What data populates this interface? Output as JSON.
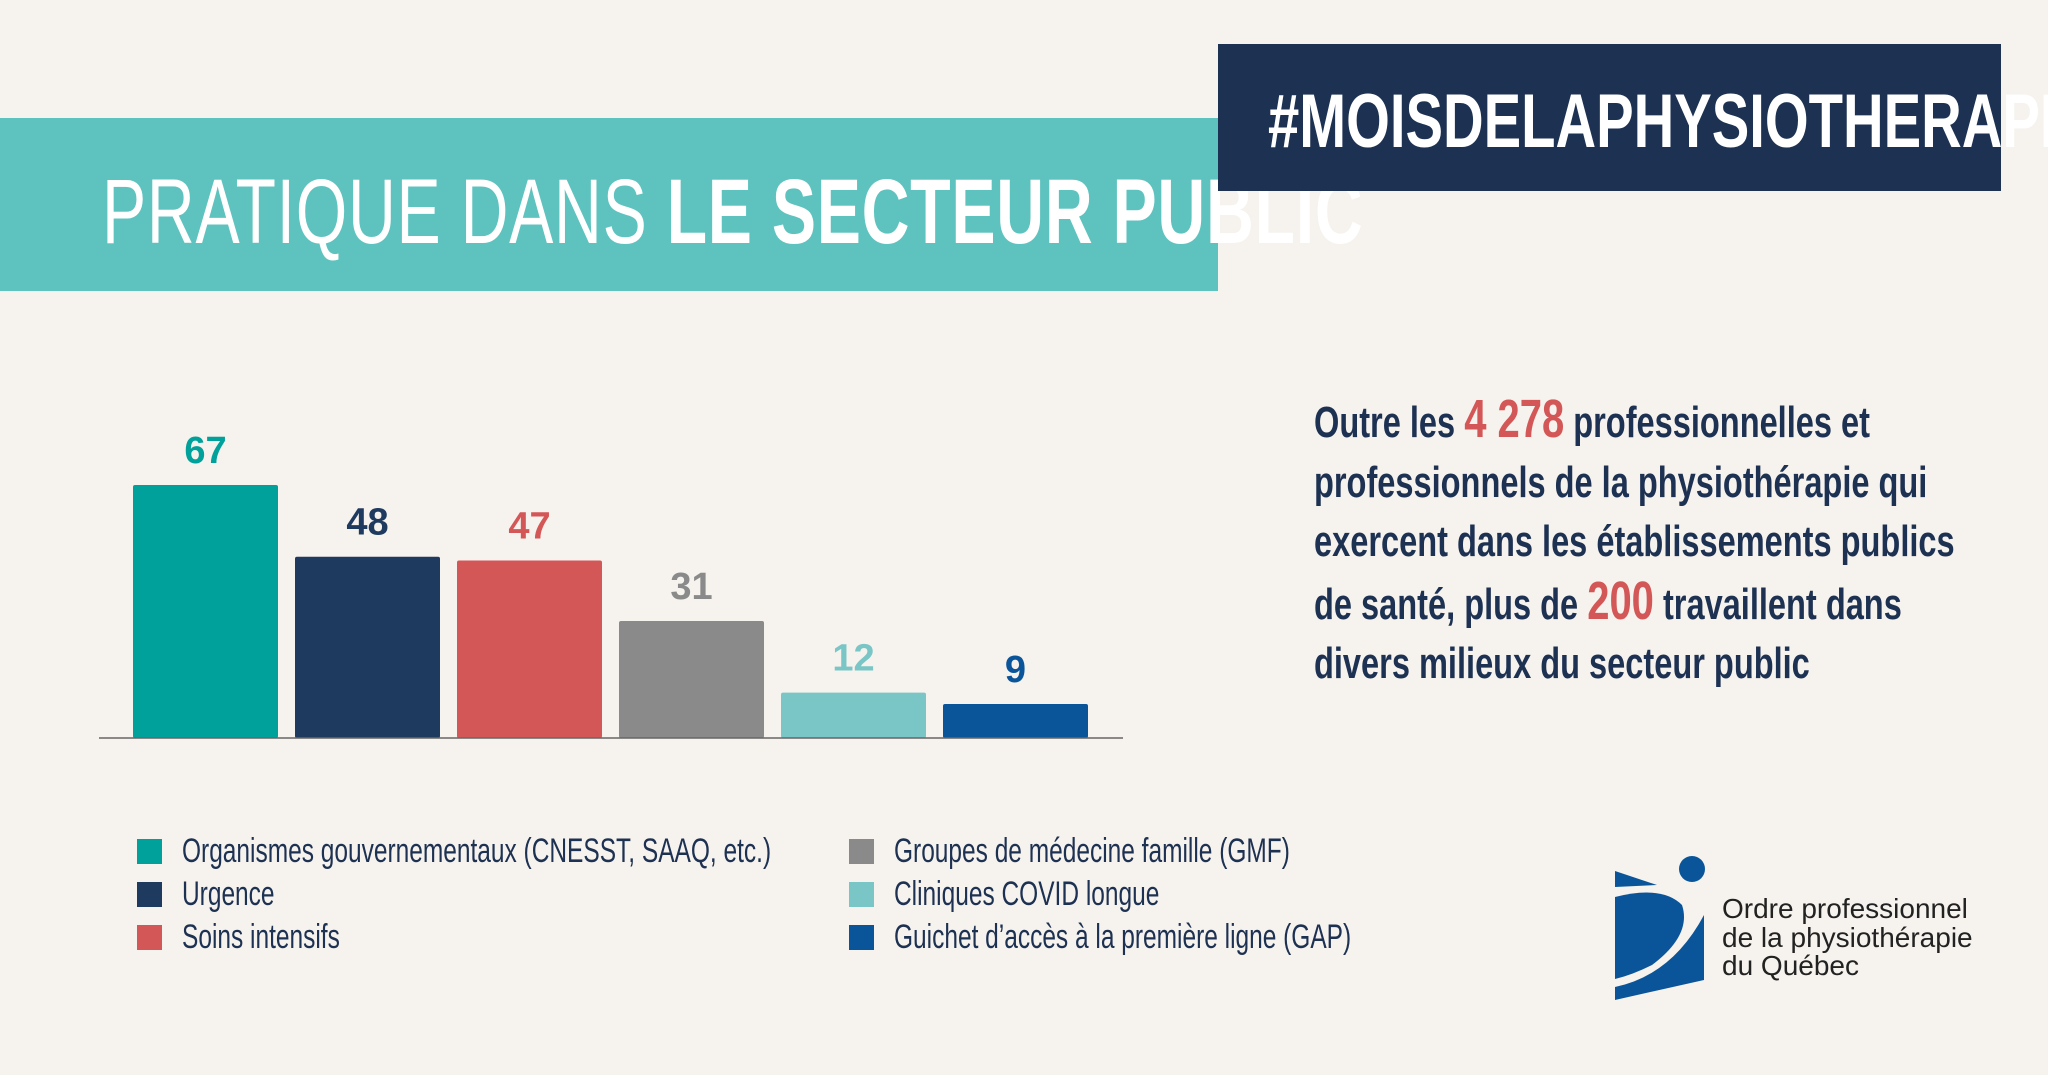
{
  "header": {
    "title_light": "PRATIQUE DANS",
    "title_bold": "LE SECTEUR PUBLIC",
    "hashtag": "#MOISDELAPHYSIOTHERAPIE"
  },
  "paragraph": {
    "part1": "Outre les ",
    "number1": "4 278",
    "part2": " professionnelles et professionnels de la physiothérapie qui exercent dans les établissements publics de santé, plus de ",
    "number2": "200",
    "part3": " travaillent dans divers milieux du secteur public"
  },
  "logo": {
    "line1": "Ordre professionnel",
    "line2": "de la physiothérapie",
    "line3": "du Québec"
  },
  "colors": {
    "background": "#f6f2ed",
    "header_teal": "#5ec3bf",
    "navy": "#1d3152",
    "accent_red": "#d45757"
  },
  "chart_data": {
    "type": "bar",
    "title": "",
    "xlabel": "",
    "ylabel": "",
    "ylim": [
      0,
      67
    ],
    "grid": false,
    "legend_position": "bottom",
    "categories": [
      "Organismes gouvernementaux (CNESST, SAAQ, etc.)",
      "Urgence",
      "Soins intensifs",
      "Groupes de médecine famille (GMF)",
      "Cliniques COVID longue",
      "Guichet d’accès à la première ligne (GAP)"
    ],
    "values": [
      67,
      48,
      47,
      31,
      12,
      9
    ],
    "labels": [
      "67",
      "48",
      "47",
      "31",
      "12",
      "9"
    ],
    "colors": [
      "#00a19b",
      "#1f3a5f",
      "#d45757",
      "#8a8a8a",
      "#7ac6c6",
      "#0a559a"
    ]
  }
}
